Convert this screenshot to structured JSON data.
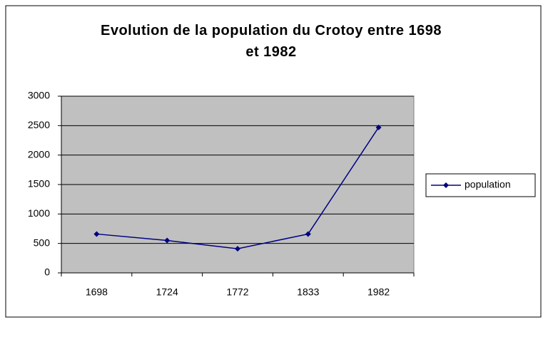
{
  "chart_data": {
    "type": "line",
    "title": "Evolution de la population du Crotoy entre 1698 et 1982",
    "categories": [
      "1698",
      "1724",
      "1772",
      "1833",
      "1982"
    ],
    "series": [
      {
        "name": "population",
        "color": "#000080",
        "values": [
          660,
          550,
          410,
          660,
          2470
        ]
      }
    ],
    "ylim": [
      0,
      3000
    ],
    "yticks": [
      0,
      500,
      1000,
      1500,
      2000,
      2500,
      3000
    ],
    "grid": true,
    "legend": "right",
    "plot_background": "#c0c0c0"
  }
}
